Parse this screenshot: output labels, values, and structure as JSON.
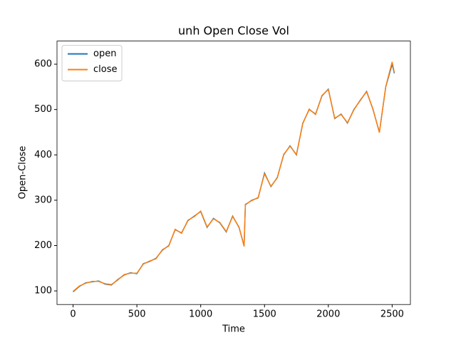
{
  "chart_data": {
    "type": "line",
    "title": "unh Open Close Vol",
    "x_label": "Time",
    "y_label": "Open-Close",
    "x": [
      0,
      50,
      100,
      150,
      200,
      250,
      300,
      350,
      400,
      450,
      500,
      550,
      600,
      650,
      700,
      750,
      800,
      850,
      900,
      950,
      1000,
      1050,
      1100,
      1150,
      1200,
      1250,
      1300,
      1340,
      1350,
      1400,
      1450,
      1500,
      1550,
      1600,
      1650,
      1700,
      1750,
      1800,
      1850,
      1900,
      1950,
      2000,
      2050,
      2100,
      2150,
      2200,
      2250,
      2300,
      2350,
      2400,
      2450,
      2500,
      2517
    ],
    "series": [
      {
        "name": "open",
        "color": "#1f77b4",
        "values": [
          98,
          110,
          118,
          120,
          122,
          115,
          113,
          125,
          135,
          140,
          138,
          160,
          165,
          172,
          190,
          200,
          235,
          228,
          255,
          265,
          275,
          240,
          260,
          250,
          230,
          265,
          240,
          200,
          290,
          300,
          305,
          360,
          330,
          350,
          400,
          420,
          400,
          470,
          500,
          490,
          530,
          545,
          480,
          490,
          470,
          500,
          520,
          540,
          500,
          450,
          550,
          600,
          580
        ]
      },
      {
        "name": "close",
        "color": "#ff7f0e",
        "values": [
          99,
          111,
          117,
          121,
          121,
          116,
          114,
          124,
          136,
          139,
          139,
          159,
          166,
          171,
          191,
          199,
          236,
          227,
          256,
          264,
          276,
          241,
          259,
          251,
          231,
          264,
          241,
          198,
          291,
          299,
          306,
          358,
          331,
          349,
          401,
          419,
          401,
          469,
          501,
          489,
          531,
          544,
          481,
          489,
          471,
          499,
          521,
          539,
          501,
          449,
          551,
          605,
          582
        ]
      }
    ],
    "xlim": [
      -126,
      2643
    ],
    "ylim": [
      70,
      651
    ],
    "xticks": [
      0,
      500,
      1000,
      1500,
      2000,
      2500
    ],
    "yticks": [
      100,
      200,
      300,
      400,
      500,
      600
    ],
    "legend": "upper left"
  }
}
